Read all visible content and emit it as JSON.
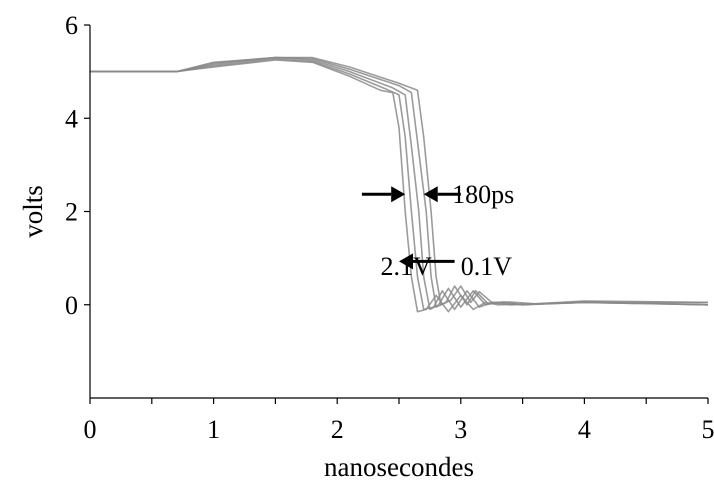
{
  "chart_data": {
    "type": "line",
    "xlabel": "nanosecondes",
    "ylabel": "volts",
    "xlim": [
      0,
      5
    ],
    "ylim": [
      -2,
      6
    ],
    "xticks": [
      0,
      1,
      2,
      3,
      4,
      5
    ],
    "yticks": [
      0,
      2,
      4,
      6
    ],
    "x_minor_step": 0.5,
    "grid": false,
    "legend": "none",
    "colors": {
      "series": "#8a8a8a",
      "axis": "#000000",
      "arrow": "#000000"
    },
    "series": [
      {
        "values": [
          [
            0,
            5
          ],
          [
            0.7,
            5.0
          ],
          [
            1.0,
            5.1
          ],
          [
            1.5,
            5.25
          ],
          [
            1.8,
            5.2
          ],
          [
            2.1,
            4.9
          ],
          [
            2.35,
            4.6
          ],
          [
            2.45,
            4.55
          ],
          [
            2.5,
            3.8
          ],
          [
            2.55,
            2.0
          ],
          [
            2.6,
            0.6
          ],
          [
            2.65,
            -0.15
          ],
          [
            2.72,
            -0.1
          ],
          [
            2.8,
            0.2
          ],
          [
            2.9,
            -0.15
          ],
          [
            3.0,
            0.2
          ],
          [
            3.1,
            -0.1
          ],
          [
            3.2,
            0.05
          ],
          [
            3.3,
            0.0
          ],
          [
            4.0,
            0.05
          ],
          [
            5.0,
            0.0
          ]
        ]
      },
      {
        "values": [
          [
            0,
            5
          ],
          [
            0.7,
            5.0
          ],
          [
            1.0,
            5.12
          ],
          [
            1.5,
            5.27
          ],
          [
            1.8,
            5.22
          ],
          [
            2.1,
            4.95
          ],
          [
            2.4,
            4.62
          ],
          [
            2.5,
            4.5
          ],
          [
            2.55,
            3.6
          ],
          [
            2.6,
            2.0
          ],
          [
            2.65,
            0.6
          ],
          [
            2.7,
            -0.1
          ],
          [
            2.78,
            -0.05
          ],
          [
            2.85,
            0.3
          ],
          [
            2.95,
            -0.1
          ],
          [
            3.05,
            0.3
          ],
          [
            3.15,
            -0.05
          ],
          [
            3.25,
            0.05
          ],
          [
            3.4,
            0.0
          ],
          [
            4.0,
            0.05
          ],
          [
            5.0,
            0.0
          ]
        ]
      },
      {
        "values": [
          [
            0,
            5
          ],
          [
            0.7,
            5.0
          ],
          [
            1.0,
            5.15
          ],
          [
            1.5,
            5.3
          ],
          [
            1.8,
            5.25
          ],
          [
            2.1,
            5.0
          ],
          [
            2.45,
            4.65
          ],
          [
            2.55,
            4.5
          ],
          [
            2.6,
            3.4
          ],
          [
            2.66,
            2.0
          ],
          [
            2.7,
            0.6
          ],
          [
            2.75,
            -0.1
          ],
          [
            2.82,
            0.0
          ],
          [
            2.9,
            0.35
          ],
          [
            3.0,
            -0.05
          ],
          [
            3.1,
            0.3
          ],
          [
            3.2,
            0.0
          ],
          [
            3.3,
            0.05
          ],
          [
            3.5,
            0.0
          ],
          [
            4.0,
            0.05
          ],
          [
            5.0,
            0.05
          ]
        ]
      },
      {
        "values": [
          [
            0,
            5
          ],
          [
            0.7,
            5.0
          ],
          [
            1.0,
            5.18
          ],
          [
            1.5,
            5.3
          ],
          [
            1.8,
            5.28
          ],
          [
            2.1,
            5.05
          ],
          [
            2.5,
            4.7
          ],
          [
            2.6,
            4.55
          ],
          [
            2.65,
            3.5
          ],
          [
            2.72,
            2.0
          ],
          [
            2.76,
            0.6
          ],
          [
            2.8,
            -0.05
          ],
          [
            2.88,
            0.05
          ],
          [
            2.95,
            0.4
          ],
          [
            3.05,
            0.0
          ],
          [
            3.12,
            0.3
          ],
          [
            3.22,
            0.02
          ],
          [
            3.35,
            0.06
          ],
          [
            3.5,
            0.0
          ],
          [
            4.0,
            0.07
          ],
          [
            5.0,
            0.0
          ]
        ]
      },
      {
        "values": [
          [
            0,
            5
          ],
          [
            0.7,
            5.0
          ],
          [
            1.0,
            5.2
          ],
          [
            1.5,
            5.3
          ],
          [
            1.8,
            5.3
          ],
          [
            2.1,
            5.1
          ],
          [
            2.5,
            4.75
          ],
          [
            2.65,
            4.6
          ],
          [
            2.7,
            3.6
          ],
          [
            2.76,
            2.0
          ],
          [
            2.8,
            0.6
          ],
          [
            2.84,
            0.0
          ],
          [
            2.92,
            0.1
          ],
          [
            3.0,
            0.4
          ],
          [
            3.08,
            0.05
          ],
          [
            3.15,
            0.28
          ],
          [
            3.25,
            0.05
          ],
          [
            3.4,
            0.06
          ],
          [
            3.6,
            0.02
          ],
          [
            4.0,
            0.08
          ],
          [
            5.0,
            0.05
          ]
        ]
      }
    ],
    "annotations": [
      {
        "text": "180ps",
        "x": 2.93,
        "y": 2.37
      },
      {
        "text": "2.1V",
        "x": 2.35,
        "y": 0.83
      },
      {
        "text": "0.1V",
        "x": 3.0,
        "y": 0.83
      }
    ],
    "arrows": [
      {
        "from": [
          2.2,
          2.37
        ],
        "to": [
          2.55,
          2.37
        ]
      },
      {
        "from": [
          3.0,
          2.37
        ],
        "to": [
          2.7,
          2.37
        ]
      },
      {
        "from": [
          2.95,
          0.93
        ],
        "to": [
          2.5,
          0.93
        ]
      }
    ]
  }
}
